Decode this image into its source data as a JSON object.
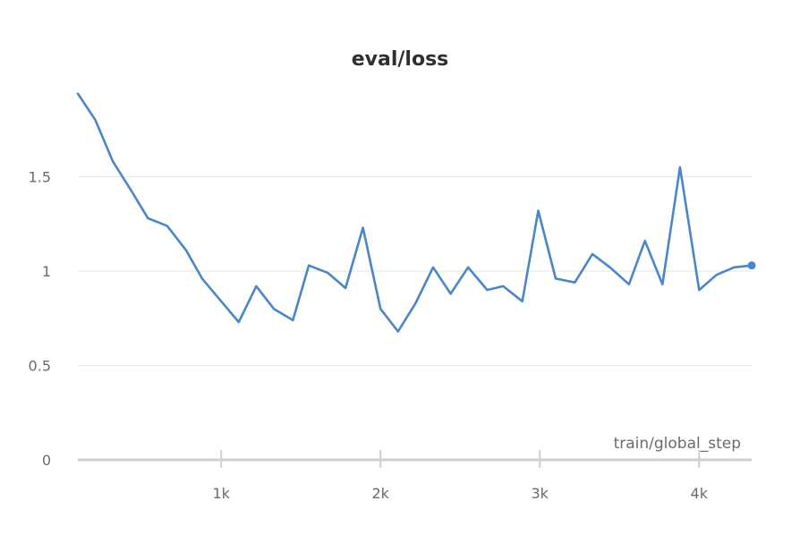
{
  "chart_data": {
    "type": "line",
    "title": "eval/loss",
    "xlabel": "train/global_step",
    "ylabel": "",
    "xlim": [
      100,
      4330
    ],
    "ylim": [
      0,
      2
    ],
    "xticks": [
      1000,
      2000,
      3000,
      4000
    ],
    "xtick_labels": [
      "1k",
      "2k",
      "3k",
      "4k"
    ],
    "yticks": [
      0,
      0.5,
      1,
      1.5
    ],
    "ytick_labels": [
      "0",
      "0.5",
      "1",
      "1.5"
    ],
    "grid": true,
    "series_color": "#4a86c8",
    "series": [
      {
        "x": [
          100,
          210,
          320,
          440,
          540,
          660,
          780,
          880,
          1000,
          1110,
          1220,
          1330,
          1450,
          1550,
          1670,
          1780,
          1890,
          2000,
          2110,
          2220,
          2330,
          2440,
          2550,
          2670,
          2770,
          2890,
          2990,
          3100,
          3220,
          3330,
          3440,
          3560,
          3660,
          3770,
          3880,
          4000,
          4110,
          4220,
          4330
        ],
        "y": [
          1.94,
          1.8,
          1.58,
          1.42,
          1.28,
          1.24,
          1.11,
          0.96,
          0.84,
          0.73,
          0.92,
          0.8,
          0.74,
          1.03,
          0.99,
          0.91,
          1.23,
          0.8,
          0.68,
          0.83,
          1.02,
          0.88,
          1.02,
          0.9,
          0.92,
          0.84,
          1.32,
          0.96,
          0.94,
          1.09,
          1.02,
          0.93,
          1.16,
          0.93,
          1.55,
          0.9,
          0.98,
          1.02,
          1.03
        ]
      }
    ]
  }
}
